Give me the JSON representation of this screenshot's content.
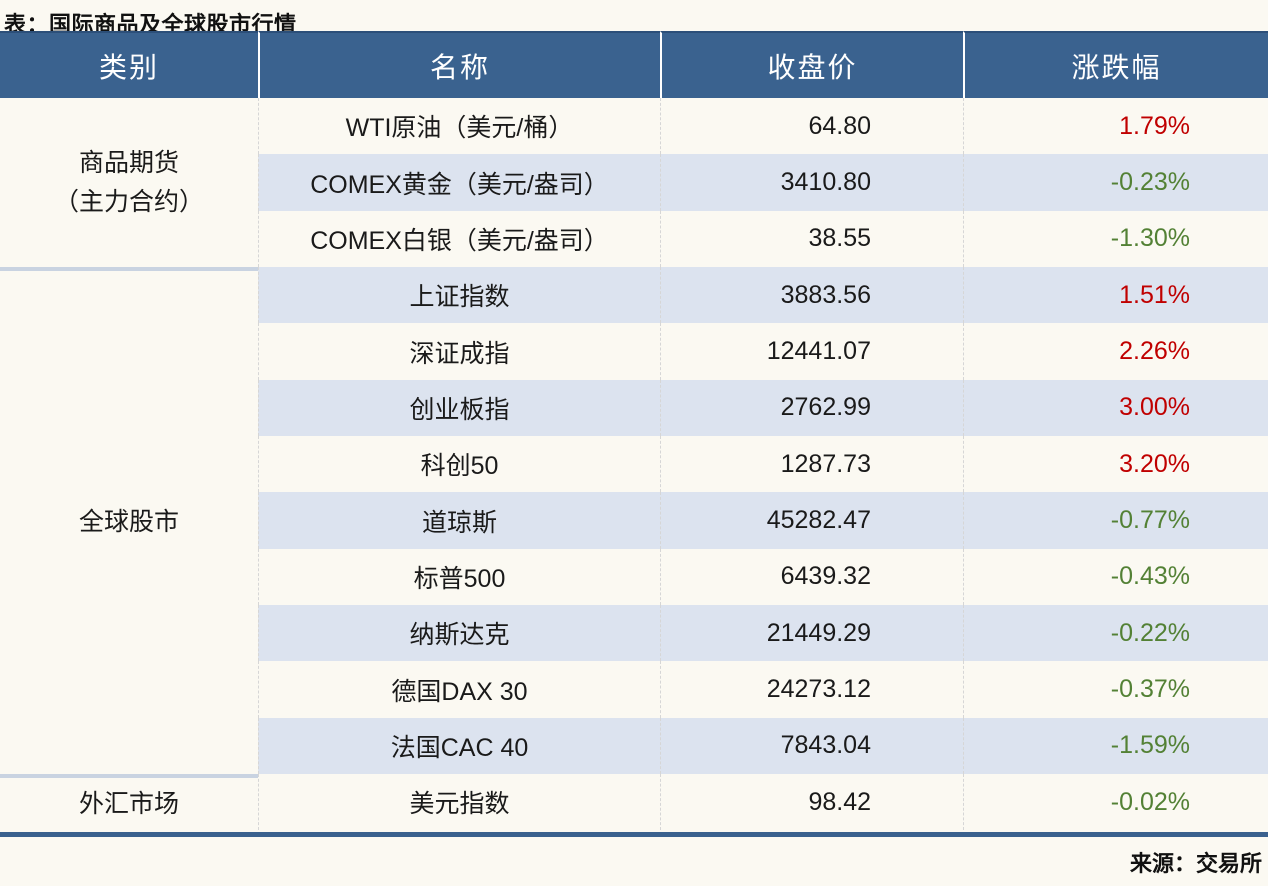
{
  "title": "表：国际商品及全球股市行情",
  "source": "来源：交易所",
  "colors": {
    "header_bg": "#3A628F",
    "header_text": "#FFFFFF",
    "stripe": "#DCE3EF",
    "row_bg": "#FBF9F2",
    "up": "#C00000",
    "down": "#538135",
    "accent": "#3A618E",
    "separator": "#C9D3E1",
    "divider": "#D6D6D6",
    "text": "#1A1A1A"
  },
  "table": {
    "headers": [
      "类别",
      "名称",
      "收盘价",
      "涨跌幅"
    ],
    "groups": [
      {
        "label_lines": [
          "商品期货",
          "（主力合约）"
        ],
        "rowspan": 3
      },
      {
        "label_lines": [
          "全球股市"
        ],
        "rowspan": 9
      },
      {
        "label_lines": [
          "外汇市场"
        ],
        "rowspan": 1
      }
    ],
    "rows": [
      {
        "name": "WTI原油（美元/桶）",
        "close": "64.80",
        "change": "1.79%",
        "direction": "up"
      },
      {
        "name": "COMEX黄金（美元/盎司）",
        "close": "3410.80",
        "change": "-0.23%",
        "direction": "down"
      },
      {
        "name": "COMEX白银（美元/盎司）",
        "close": "38.55",
        "change": "-1.30%",
        "direction": "down"
      },
      {
        "name": "上证指数",
        "close": "3883.56",
        "change": "1.51%",
        "direction": "up"
      },
      {
        "name": "深证成指",
        "close": "12441.07",
        "change": "2.26%",
        "direction": "up"
      },
      {
        "name": "创业板指",
        "close": "2762.99",
        "change": "3.00%",
        "direction": "up"
      },
      {
        "name": "科创50",
        "close": "1287.73",
        "change": "3.20%",
        "direction": "up"
      },
      {
        "name": "道琼斯",
        "close": "45282.47",
        "change": "-0.77%",
        "direction": "down"
      },
      {
        "name": "标普500",
        "close": "6439.32",
        "change": "-0.43%",
        "direction": "down"
      },
      {
        "name": "纳斯达克",
        "close": "21449.29",
        "change": "-0.22%",
        "direction": "down"
      },
      {
        "name": "德国DAX 30",
        "close": "24273.12",
        "change": "-0.37%",
        "direction": "down"
      },
      {
        "name": "法国CAC 40",
        "close": "7843.04",
        "change": "-1.59%",
        "direction": "down"
      },
      {
        "name": "美元指数",
        "close": "98.42",
        "change": "-0.02%",
        "direction": "down"
      }
    ]
  }
}
